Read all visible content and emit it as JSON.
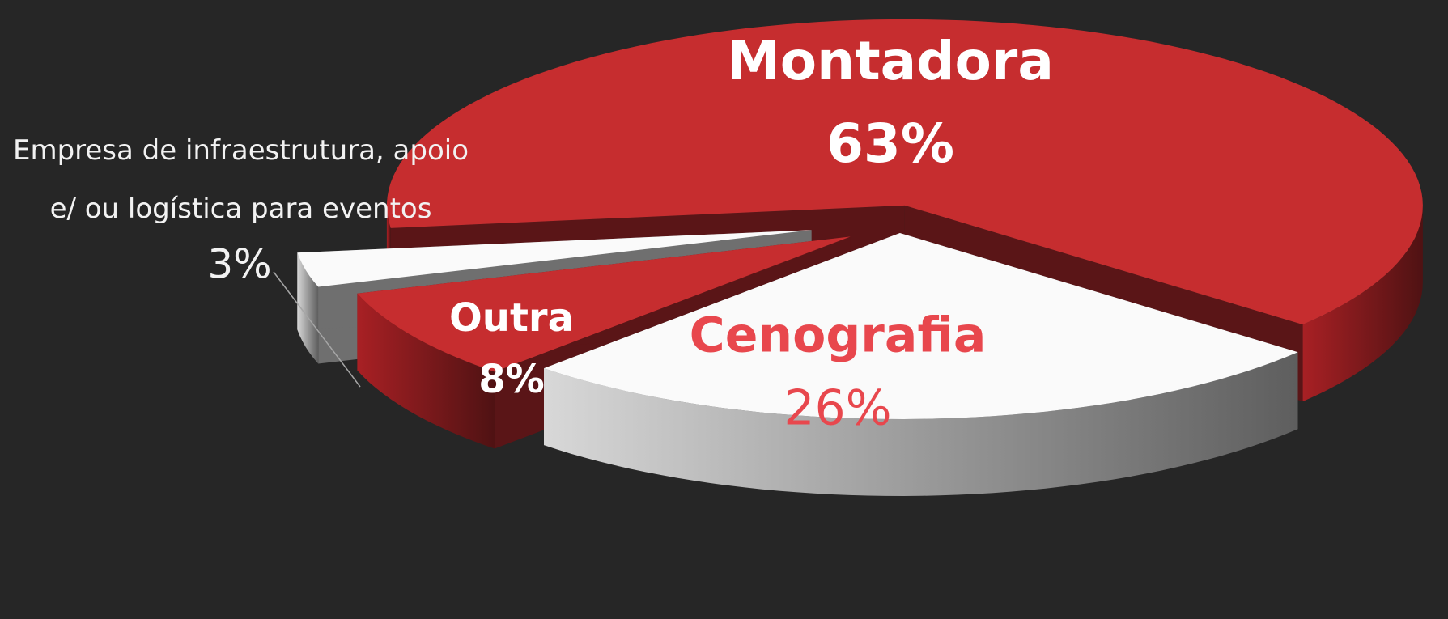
{
  "chart_data": {
    "type": "pie",
    "categories": [
      "Montadora",
      "Cenografia",
      "Outra",
      "Empresa de infraestrutura, apoio e/ ou logística para eventos"
    ],
    "values": [
      63,
      26,
      8,
      3
    ],
    "value_labels": [
      "63%",
      "26%",
      "8%",
      "3%"
    ],
    "colors": [
      "#c62d2f",
      "#fafafa",
      "#c62d2f",
      "#fafafa"
    ],
    "label_colors": [
      "#ffffff",
      "#e8474d",
      "#ffffff",
      "#f2f2f2"
    ]
  }
}
